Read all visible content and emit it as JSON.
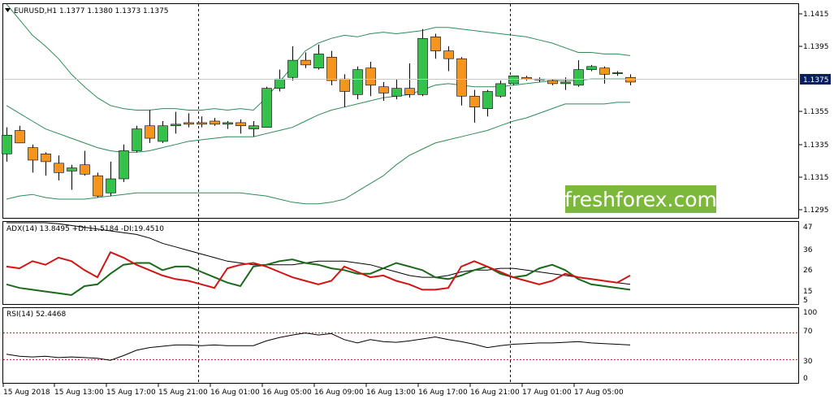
{
  "colors": {
    "bull": "#33c24a",
    "bear": "#f7941d",
    "wick": "#000000",
    "band": "#2e8b57",
    "adx": "#000000",
    "plus_di": "#1a6a1a",
    "minus_di": "#d21414",
    "rsi": "#000000",
    "level_line": "#b22222",
    "watermark_bg": "#7cb83a",
    "price_tag_bg": "#0a1e64"
  },
  "header": {
    "collapse_icon": "triangle-down-icon",
    "price_title": "EURUSD,H1  1.1377 1.1380 1.1373 1.1375",
    "adx_title": "ADX(14) 13.8495 +DI:11.5184 -DI:19.4510",
    "rsi_title": "RSI(14) 52.4468"
  },
  "watermark": {
    "text": "freshforex.com"
  },
  "price_tag": {
    "text": "1.1375"
  },
  "price_axis": [
    "1.1415",
    "1.1395",
    "1.1375",
    "1.1355",
    "1.1335",
    "1.1315",
    "1.1295"
  ],
  "adx_axis": [
    "47",
    "36",
    "26",
    "15",
    "5"
  ],
  "rsi_axis": [
    "100",
    "70",
    "30",
    "0"
  ],
  "time_axis": [
    "15 Aug 2018",
    "15 Aug 13:00",
    "15 Aug 17:00",
    "15 Aug 21:00",
    "16 Aug 01:00",
    "16 Aug 05:00",
    "16 Aug 09:00",
    "16 Aug 13:00",
    "16 Aug 17:00",
    "16 Aug 21:00",
    "17 Aug 01:00",
    "17 Aug 05:00"
  ],
  "chart_data": [
    {
      "type": "candlestick",
      "title": "EURUSD,H1",
      "ohlc_last": {
        "open": 1.1377,
        "high": 1.138,
        "low": 1.1373,
        "close": 1.1375
      },
      "ylim": [
        1.1288,
        1.1425
      ],
      "y_ticks": [
        1.1415,
        1.1395,
        1.1375,
        1.1355,
        1.1335,
        1.1315,
        1.1295
      ],
      "candles": [
        {
          "o": 1.1329,
          "h": 1.1346,
          "l": 1.1324,
          "c": 1.1341
        },
        {
          "o": 1.1344,
          "h": 1.1347,
          "l": 1.1336,
          "c": 1.1336
        },
        {
          "o": 1.1333,
          "h": 1.1335,
          "l": 1.1317,
          "c": 1.1325
        },
        {
          "o": 1.1329,
          "h": 1.133,
          "l": 1.1315,
          "c": 1.1324
        },
        {
          "o": 1.1323,
          "h": 1.1328,
          "l": 1.1312,
          "c": 1.1317
        },
        {
          "o": 1.1318,
          "h": 1.1322,
          "l": 1.1306,
          "c": 1.132
        },
        {
          "o": 1.1322,
          "h": 1.1331,
          "l": 1.1315,
          "c": 1.1316
        },
        {
          "o": 1.1315,
          "h": 1.1317,
          "l": 1.1301,
          "c": 1.1302
        },
        {
          "o": 1.1304,
          "h": 1.1324,
          "l": 1.1302,
          "c": 1.1313
        },
        {
          "o": 1.1313,
          "h": 1.1335,
          "l": 1.1311,
          "c": 1.1331
        },
        {
          "o": 1.1331,
          "h": 1.1347,
          "l": 1.133,
          "c": 1.1345
        },
        {
          "o": 1.1347,
          "h": 1.1357,
          "l": 1.1336,
          "c": 1.1339
        },
        {
          "o": 1.1337,
          "h": 1.135,
          "l": 1.1336,
          "c": 1.1347
        },
        {
          "o": 1.1347,
          "h": 1.1356,
          "l": 1.1342,
          "c": 1.1348
        },
        {
          "o": 1.1349,
          "h": 1.1355,
          "l": 1.1346,
          "c": 1.1348
        },
        {
          "o": 1.1349,
          "h": 1.1353,
          "l": 1.1346,
          "c": 1.1348
        },
        {
          "o": 1.135,
          "h": 1.1352,
          "l": 1.1347,
          "c": 1.1348
        },
        {
          "o": 1.1348,
          "h": 1.135,
          "l": 1.1345,
          "c": 1.1349
        },
        {
          "o": 1.1349,
          "h": 1.1351,
          "l": 1.1342,
          "c": 1.1347
        },
        {
          "o": 1.1345,
          "h": 1.135,
          "l": 1.134,
          "c": 1.1347
        },
        {
          "o": 1.1346,
          "h": 1.1372,
          "l": 1.1346,
          "c": 1.1371
        },
        {
          "o": 1.1371,
          "h": 1.1383,
          "l": 1.1369,
          "c": 1.1377
        },
        {
          "o": 1.1378,
          "h": 1.1398,
          "l": 1.1376,
          "c": 1.1389
        },
        {
          "o": 1.1389,
          "h": 1.1394,
          "l": 1.1384,
          "c": 1.1386
        },
        {
          "o": 1.1384,
          "h": 1.1399,
          "l": 1.1383,
          "c": 1.1393
        },
        {
          "o": 1.1391,
          "h": 1.1395,
          "l": 1.1373,
          "c": 1.1376
        },
        {
          "o": 1.1377,
          "h": 1.138,
          "l": 1.1359,
          "c": 1.1369
        },
        {
          "o": 1.1367,
          "h": 1.1385,
          "l": 1.1364,
          "c": 1.1383
        },
        {
          "o": 1.1384,
          "h": 1.1388,
          "l": 1.1366,
          "c": 1.1373
        },
        {
          "o": 1.1372,
          "h": 1.1375,
          "l": 1.1363,
          "c": 1.1368
        },
        {
          "o": 1.1366,
          "h": 1.1377,
          "l": 1.1364,
          "c": 1.1371
        },
        {
          "o": 1.1371,
          "h": 1.1387,
          "l": 1.1365,
          "c": 1.1367
        },
        {
          "o": 1.1367,
          "h": 1.1409,
          "l": 1.1366,
          "c": 1.1403
        },
        {
          "o": 1.1404,
          "h": 1.1406,
          "l": 1.139,
          "c": 1.1395
        },
        {
          "o": 1.1395,
          "h": 1.1398,
          "l": 1.1382,
          "c": 1.139
        },
        {
          "o": 1.139,
          "h": 1.1391,
          "l": 1.136,
          "c": 1.1366
        },
        {
          "o": 1.1366,
          "h": 1.137,
          "l": 1.1349,
          "c": 1.1359
        },
        {
          "o": 1.1358,
          "h": 1.137,
          "l": 1.1353,
          "c": 1.1369
        },
        {
          "o": 1.1366,
          "h": 1.1376,
          "l": 1.1365,
          "c": 1.1374
        },
        {
          "o": 1.1374,
          "h": 1.1379,
          "l": 1.1373,
          "c": 1.1379
        },
        {
          "o": 1.1378,
          "h": 1.1379,
          "l": 1.1376,
          "c": 1.1377
        },
        {
          "o": 1.1377,
          "h": 1.1378,
          "l": 1.1375,
          "c": 1.1377
        },
        {
          "o": 1.1376,
          "h": 1.1377,
          "l": 1.1373,
          "c": 1.1374
        },
        {
          "o": 1.1374,
          "h": 1.1378,
          "l": 1.137,
          "c": 1.1375
        },
        {
          "o": 1.1373,
          "h": 1.1389,
          "l": 1.1372,
          "c": 1.1383
        },
        {
          "o": 1.1383,
          "h": 1.1386,
          "l": 1.1382,
          "c": 1.1385
        },
        {
          "o": 1.1384,
          "h": 1.1385,
          "l": 1.1374,
          "c": 1.138
        },
        {
          "o": 1.1381,
          "h": 1.1382,
          "l": 1.1379,
          "c": 1.1381
        },
        {
          "o": 1.1378,
          "h": 1.138,
          "l": 1.1373,
          "c": 1.1375
        }
      ],
      "bands": {
        "upper": [
          1.1425,
          1.1415,
          1.1405,
          1.1398,
          1.139,
          1.138,
          1.1372,
          1.1365,
          1.136,
          1.1358,
          1.1357,
          1.1357,
          1.1358,
          1.1358,
          1.1357,
          1.1357,
          1.1358,
          1.1357,
          1.1358,
          1.1357,
          1.1365,
          1.1375,
          1.1385,
          1.1395,
          1.14,
          1.1403,
          1.1405,
          1.1404,
          1.1406,
          1.1407,
          1.1406,
          1.1407,
          1.1408,
          1.141,
          1.141,
          1.1409,
          1.1408,
          1.1407,
          1.1406,
          1.1405,
          1.1404,
          1.1402,
          1.14,
          1.1397,
          1.1394,
          1.1394,
          1.1393,
          1.1393,
          1.1392
        ],
        "middle": [
          1.136,
          1.1355,
          1.135,
          1.1345,
          1.1342,
          1.1339,
          1.1336,
          1.1333,
          1.1331,
          1.133,
          1.133,
          1.1331,
          1.1333,
          1.1335,
          1.1337,
          1.1338,
          1.1339,
          1.134,
          1.134,
          1.134,
          1.1342,
          1.1344,
          1.1346,
          1.135,
          1.1354,
          1.1357,
          1.1359,
          1.1361,
          1.1363,
          1.1365,
          1.1366,
          1.1367,
          1.137,
          1.1373,
          1.1374,
          1.1373,
          1.1372,
          1.1372,
          1.1372,
          1.1373,
          1.1374,
          1.1375,
          1.1376,
          1.1376,
          1.1376,
          1.1377,
          1.1377,
          1.1377,
          1.1377
        ],
        "lower": [
          1.13,
          1.1302,
          1.1303,
          1.1301,
          1.13,
          1.13,
          1.13,
          1.1301,
          1.1302,
          1.1303,
          1.1304,
          1.1304,
          1.1304,
          1.1304,
          1.1304,
          1.1304,
          1.1304,
          1.1304,
          1.1304,
          1.1303,
          1.1302,
          1.13,
          1.1298,
          1.1297,
          1.1297,
          1.1298,
          1.13,
          1.1305,
          1.131,
          1.1315,
          1.1322,
          1.1328,
          1.1332,
          1.1336,
          1.1338,
          1.134,
          1.1342,
          1.1344,
          1.1347,
          1.135,
          1.1352,
          1.1355,
          1.1358,
          1.1361,
          1.1361,
          1.1361,
          1.1361,
          1.1362,
          1.1362
        ]
      }
    },
    {
      "type": "line",
      "title": "ADX(14) 13.8495 +DI:11.5184 -DI:19.4510",
      "ylim": [
        3,
        49
      ],
      "y_ticks": [
        47,
        36,
        26,
        15,
        5
      ],
      "series": [
        {
          "name": "ADX",
          "values": [
            52,
            51,
            50,
            49,
            48,
            47,
            46,
            45,
            44,
            43,
            42,
            40,
            37,
            35,
            33,
            31,
            29,
            27,
            26,
            25,
            25,
            25,
            25,
            26,
            27,
            27,
            27,
            26,
            25,
            23,
            21,
            19,
            18,
            18,
            19,
            21,
            22,
            22,
            23,
            23,
            22,
            21,
            20,
            19,
            18,
            17,
            16,
            15,
            14
          ]
        },
        {
          "name": "+DI",
          "values": [
            14,
            12,
            11,
            10,
            9,
            8,
            13,
            14,
            20,
            25,
            26,
            26,
            22,
            24,
            24,
            21,
            18,
            15,
            13,
            24,
            25,
            27,
            28,
            26,
            25,
            23,
            22,
            20,
            20,
            23,
            26,
            24,
            22,
            18,
            17,
            19,
            22,
            24,
            20,
            18,
            19,
            23,
            25,
            22,
            17,
            14,
            13,
            12,
            11
          ]
        },
        {
          "name": "-DI",
          "values": [
            24,
            23,
            27,
            25,
            29,
            27,
            22,
            18,
            32,
            29,
            25,
            22,
            19,
            17,
            16,
            14,
            12,
            23,
            25,
            26,
            24,
            21,
            18,
            16,
            14,
            16,
            24,
            21,
            18,
            19,
            16,
            14,
            11,
            11,
            12,
            24,
            27,
            24,
            21,
            18,
            16,
            14,
            16,
            20,
            18,
            17,
            16,
            15,
            19
          ]
        }
      ]
    },
    {
      "type": "line",
      "title": "RSI(14) 52.4468",
      "ylim": [
        0,
        100
      ],
      "y_ticks": [
        100,
        70,
        30,
        0
      ],
      "levels": [
        70,
        30
      ],
      "series": [
        {
          "name": "RSI",
          "values": [
            38,
            35,
            34,
            35,
            33,
            34,
            33,
            32,
            29,
            36,
            44,
            48,
            50,
            52,
            52,
            51,
            52,
            51,
            51,
            51,
            58,
            63,
            67,
            70,
            67,
            69,
            60,
            55,
            60,
            57,
            56,
            58,
            61,
            64,
            60,
            57,
            53,
            48,
            51,
            53,
            54,
            55,
            55,
            56,
            57,
            55,
            54,
            53,
            52
          ]
        }
      ]
    }
  ]
}
